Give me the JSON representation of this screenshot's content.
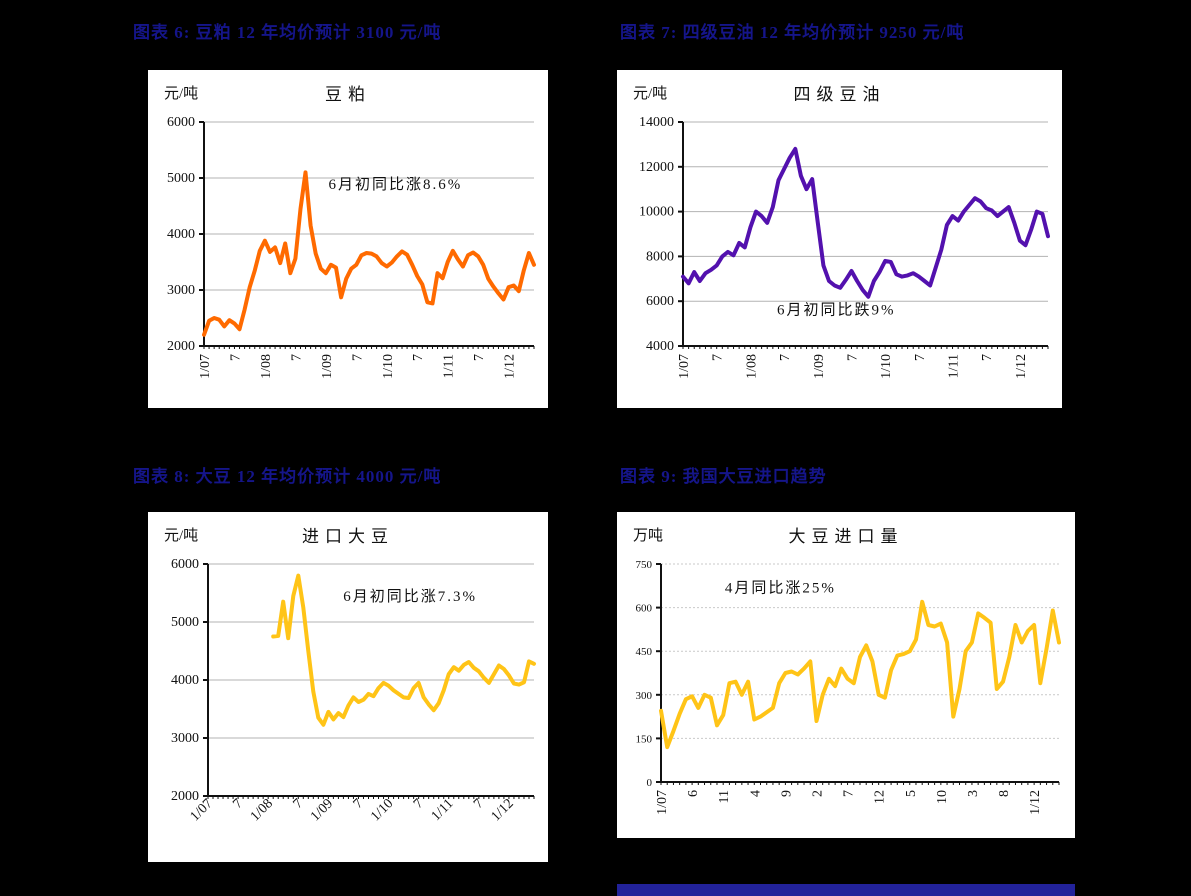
{
  "page": {
    "background": "#000000",
    "caption_color": "#15158a"
  },
  "chart_data": [
    {
      "type": "line",
      "caption": "图表 6:  豆粕 12 年均价预计 3100 元/吨",
      "title": "豆粕",
      "ylabel": "元/吨",
      "annotation": {
        "text": "6月初同比涨8.6%",
        "x": 0.58,
        "y": 0.3
      },
      "color": "#FF6A00",
      "grid_color": "#b3b3b3",
      "grid_dash": "",
      "ylim": [
        2000,
        6000
      ],
      "yticks": [
        2000,
        3000,
        4000,
        5000,
        6000
      ],
      "x_tick_labels": [
        "1/07",
        "7",
        "1/08",
        "7",
        "1/09",
        "7",
        "1/10",
        "7",
        "1/11",
        "7",
        "1/12"
      ],
      "x_tick_indices": [
        0,
        6,
        12,
        18,
        24,
        30,
        36,
        42,
        48,
        54,
        60
      ],
      "values": [
        2200,
        2450,
        2500,
        2470,
        2350,
        2460,
        2400,
        2300,
        2650,
        3050,
        3350,
        3700,
        3880,
        3680,
        3760,
        3480,
        3830,
        3300,
        3560,
        4450,
        5100,
        4150,
        3650,
        3380,
        3300,
        3450,
        3400,
        2870,
        3200,
        3380,
        3450,
        3620,
        3660,
        3650,
        3600,
        3480,
        3420,
        3490,
        3600,
        3690,
        3630,
        3450,
        3250,
        3100,
        2780,
        2760,
        3300,
        3210,
        3500,
        3700,
        3550,
        3420,
        3620,
        3670,
        3600,
        3450,
        3200,
        3060,
        2940,
        2830,
        3050,
        3080,
        2980,
        3350,
        3660,
        3450
      ],
      "layout": {
        "ml": 56,
        "mr": 14,
        "mt": 8,
        "mb": 62,
        "ytick_font": 14,
        "xtick_font": 14,
        "xrot": -90
      }
    },
    {
      "type": "line",
      "caption": "图表 7:  四级豆油 12 年均价预计 9250 元/吨",
      "title": "四级豆油",
      "ylabel": "元/吨",
      "annotation": {
        "text": "6月初同比跌9%",
        "x": 0.42,
        "y": 0.86
      },
      "color": "#5311AE",
      "grid_color": "#b3b3b3",
      "grid_dash": "",
      "ylim": [
        4000,
        14000
      ],
      "yticks": [
        4000,
        6000,
        8000,
        10000,
        12000,
        14000
      ],
      "x_tick_labels": [
        "1/07",
        "7",
        "1/08",
        "7",
        "1/09",
        "7",
        "1/10",
        "7",
        "1/11",
        "7",
        "1/12"
      ],
      "x_tick_indices": [
        0,
        6,
        12,
        18,
        24,
        30,
        36,
        42,
        48,
        54,
        60
      ],
      "values": [
        7100,
        6800,
        7300,
        6900,
        7250,
        7400,
        7600,
        8000,
        8200,
        8050,
        8600,
        8400,
        9300,
        10000,
        9800,
        9500,
        10200,
        11400,
        11900,
        12400,
        12800,
        11600,
        11000,
        11450,
        9500,
        7600,
        6900,
        6700,
        6600,
        6950,
        7350,
        6900,
        6500,
        6200,
        6900,
        7300,
        7800,
        7750,
        7200,
        7100,
        7150,
        7250,
        7100,
        6900,
        6700,
        7500,
        8300,
        9400,
        9800,
        9600,
        10000,
        10300,
        10600,
        10450,
        10150,
        10050,
        9800,
        10000,
        10200,
        9500,
        8700,
        8500,
        9200,
        10000,
        9900,
        8900
      ],
      "layout": {
        "ml": 66,
        "mr": 14,
        "mt": 8,
        "mb": 62,
        "ytick_font": 14,
        "xtick_font": 14,
        "xrot": -90
      }
    },
    {
      "type": "line",
      "caption": "图表 8:  大豆 12 年均价预计 4000 元/吨",
      "title": "进口大豆",
      "ylabel": "元/吨",
      "annotation": {
        "text": "6月初同比涨7.3%",
        "x": 0.62,
        "y": 0.16
      },
      "color": "#FFC417",
      "grid_color": "#b3b3b3",
      "grid_dash": "",
      "ylim": [
        2000,
        6000
      ],
      "yticks": [
        2000,
        3000,
        4000,
        5000,
        6000
      ],
      "x_tick_labels": [
        "1/07",
        "7",
        "1/08",
        "7",
        "1/09",
        "7",
        "1/10",
        "7",
        "1/11",
        "7",
        "1/12"
      ],
      "x_tick_indices": [
        0,
        6,
        12,
        18,
        24,
        30,
        36,
        42,
        48,
        54,
        60
      ],
      "values": [
        null,
        null,
        null,
        null,
        null,
        null,
        null,
        null,
        null,
        null,
        null,
        null,
        null,
        4750,
        4760,
        5350,
        4720,
        5450,
        5800,
        5250,
        4500,
        3800,
        3350,
        3230,
        3450,
        3320,
        3430,
        3360,
        3560,
        3700,
        3620,
        3660,
        3760,
        3720,
        3860,
        3950,
        3900,
        3820,
        3760,
        3700,
        3690,
        3860,
        3950,
        3700,
        3580,
        3480,
        3600,
        3820,
        4100,
        4220,
        4160,
        4260,
        4310,
        4210,
        4150,
        4040,
        3950,
        4100,
        4250,
        4190,
        4080,
        3940,
        3920,
        3960,
        4320,
        4280
      ],
      "layout": {
        "ml": 60,
        "mr": 14,
        "mt": 8,
        "mb": 66,
        "ytick_font": 14,
        "xtick_font": 14,
        "xrot": -45
      }
    },
    {
      "type": "line",
      "caption": "图表 9:  我国大豆进口趋势",
      "title": "大豆进口量",
      "ylabel": "万吨",
      "annotation": {
        "text": "4月同比涨25%",
        "x": 0.3,
        "y": 0.13
      },
      "color": "#FFC417",
      "grid_color": "#c9c9c9",
      "grid_dash": "2 2",
      "ylim": [
        0,
        750
      ],
      "yticks": [
        0,
        150,
        300,
        450,
        600,
        750
      ],
      "x_tick_labels": [
        "1/07",
        "6",
        "11",
        "4",
        "9",
        "2",
        "7",
        "12",
        "5",
        "10",
        "3",
        "8",
        "1/12"
      ],
      "x_tick_indices": [
        0,
        5,
        10,
        15,
        20,
        25,
        30,
        35,
        40,
        45,
        50,
        55,
        60
      ],
      "values": [
        245,
        120,
        175,
        235,
        285,
        295,
        255,
        300,
        290,
        195,
        230,
        340,
        345,
        300,
        345,
        215,
        225,
        240,
        255,
        340,
        375,
        380,
        370,
        390,
        415,
        210,
        300,
        355,
        330,
        390,
        355,
        340,
        430,
        470,
        415,
        300,
        290,
        385,
        435,
        440,
        450,
        490,
        620,
        540,
        535,
        545,
        480,
        225,
        320,
        450,
        480,
        580,
        565,
        548,
        320,
        345,
        430,
        540,
        480,
        520,
        540,
        340,
        460,
        590,
        480
      ],
      "layout": {
        "ml": 44,
        "mr": 16,
        "mt": 8,
        "mb": 56,
        "ytick_font": 11,
        "xtick_font": 14,
        "xrot": -90
      }
    }
  ]
}
